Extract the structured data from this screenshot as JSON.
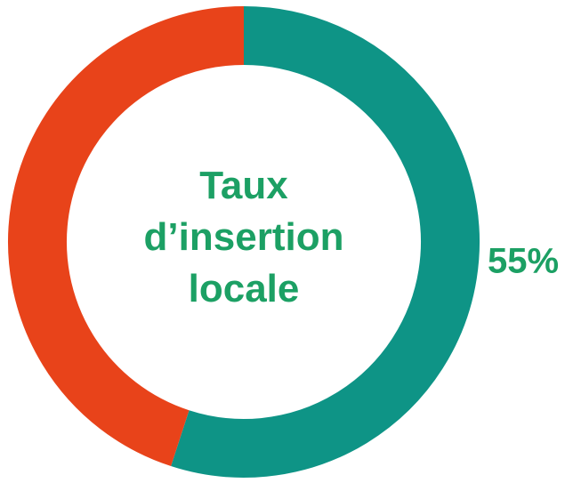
{
  "chart_data": {
    "type": "pie",
    "donut": true,
    "title": "Taux d’insertion locale",
    "values": [
      55,
      45
    ],
    "value_labels": [
      "55%",
      null
    ],
    "colors": [
      "#0e9486",
      "#e8431a"
    ],
    "text_color": "#1ca064"
  }
}
